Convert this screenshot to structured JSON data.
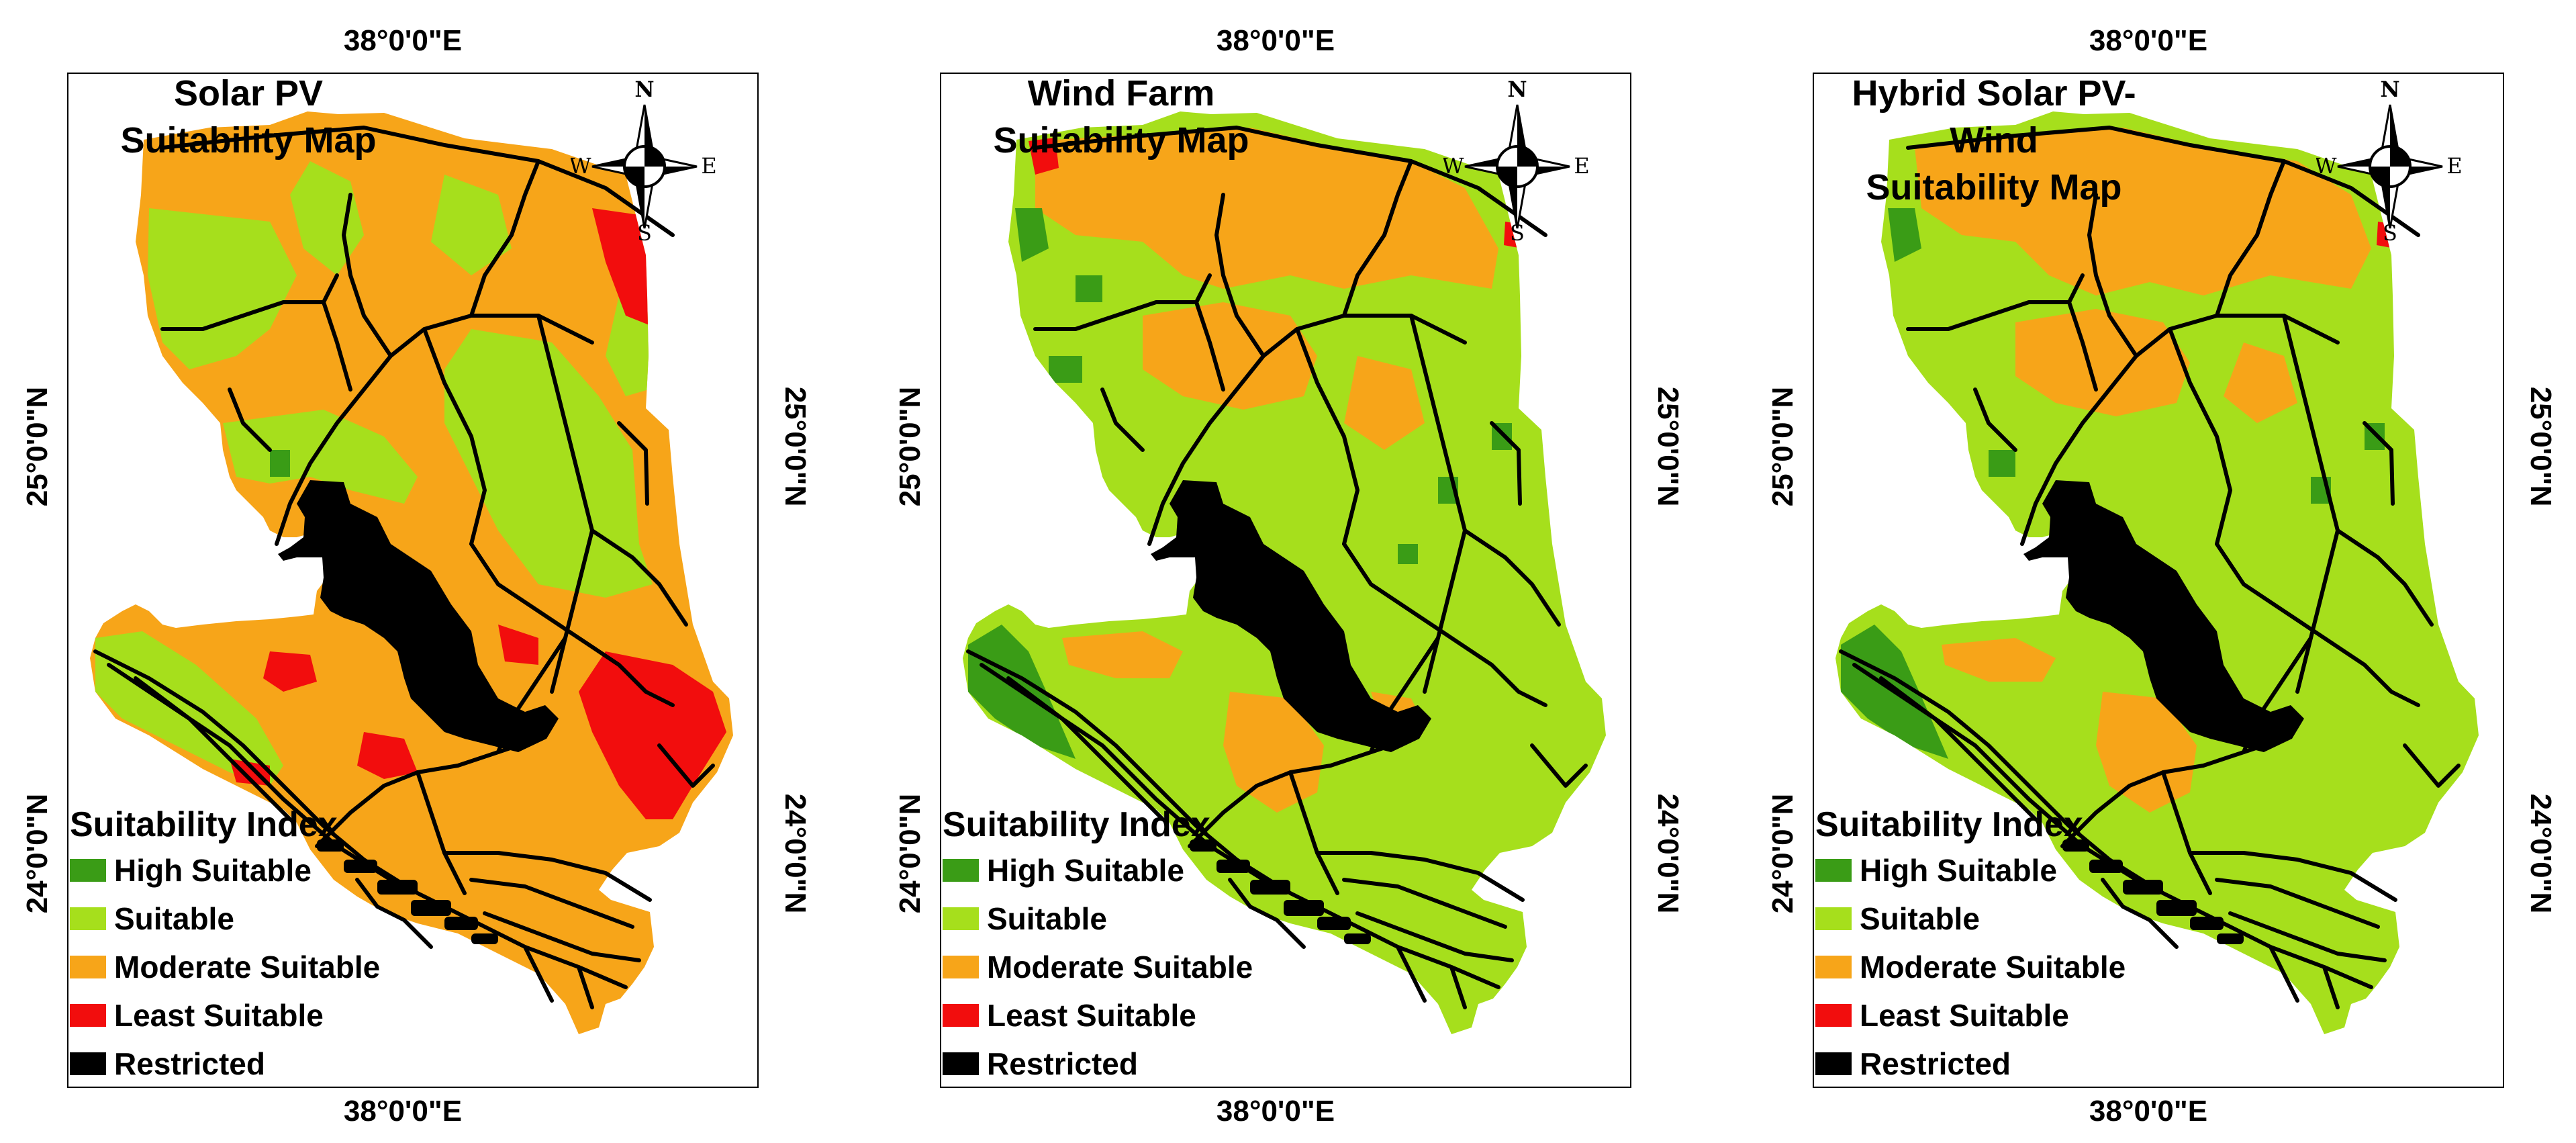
{
  "panels": [
    {
      "title_line1": "Solar PV",
      "title_line2": "Suitability Map",
      "variant": "solar"
    },
    {
      "title_line1": "Wind Farm",
      "title_line2": "Suitability Map",
      "variant": "wind"
    },
    {
      "title_line1": "Hybrid Solar PV-Wind",
      "title_line2": "Suitability Map",
      "variant": "hybrid"
    }
  ],
  "graticule": {
    "lon_label": "38°0'0\"E",
    "lat_upper": "25°0'0\"N",
    "lat_lower": "24°0'0\"N"
  },
  "compass": {
    "north": "N",
    "south": "S",
    "east": "E",
    "west": "W"
  },
  "legend": {
    "title": "Suitability Index",
    "items": [
      {
        "label": "High Suitable",
        "color": "#3a9c16"
      },
      {
        "label": "Suitable",
        "color": "#a6df1c"
      },
      {
        "label": "Moderate Suitable",
        "color": "#f7a519"
      },
      {
        "label": "Least Suitable",
        "color": "#f20d0d"
      },
      {
        "label": "Restricted",
        "color": "#000000"
      }
    ]
  }
}
